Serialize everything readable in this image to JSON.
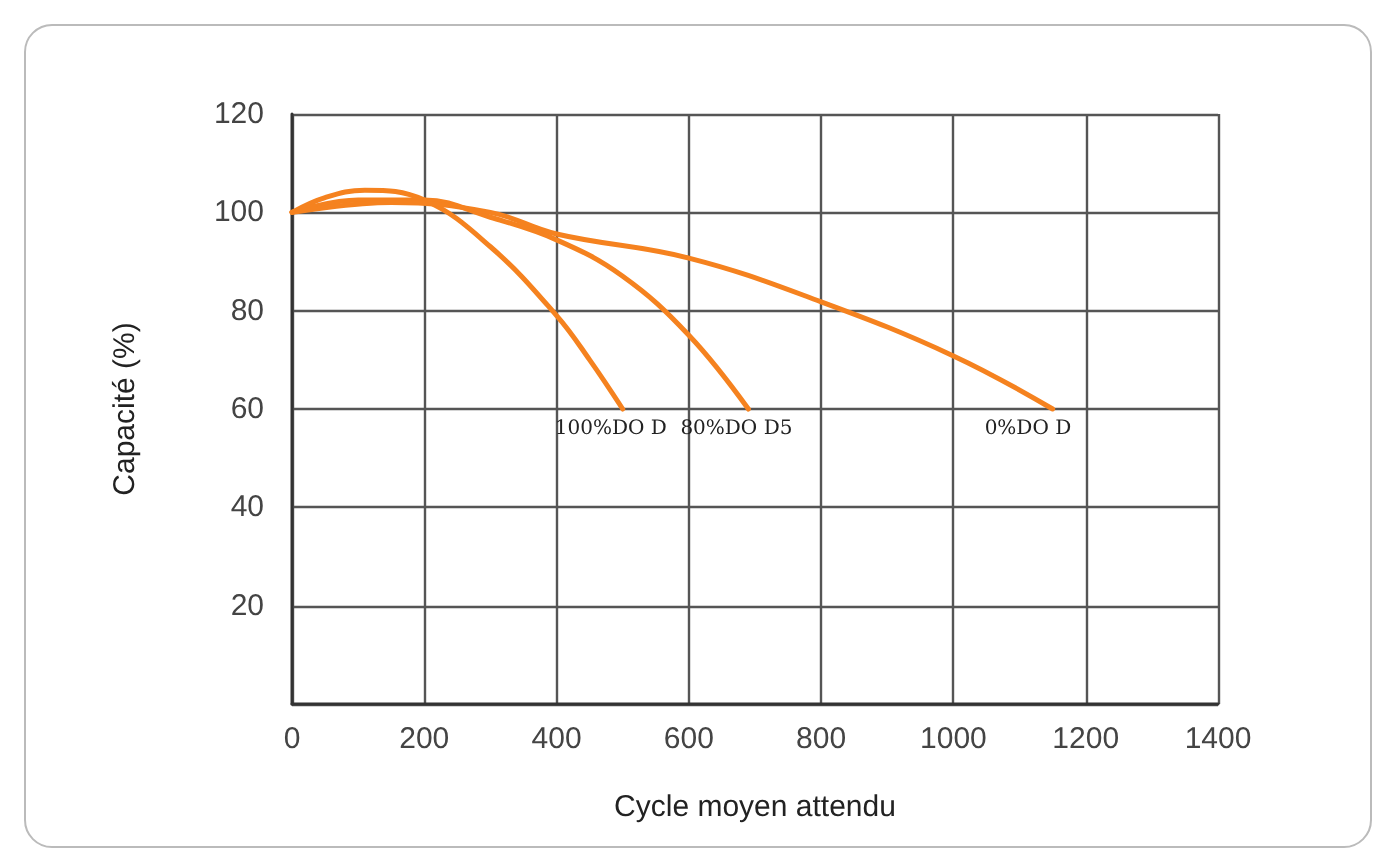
{
  "chart_data": {
    "type": "line",
    "xlabel": "Cycle moyen attendu",
    "ylabel": "Capacité (%)",
    "xlim": [
      0,
      1400
    ],
    "xticks": [
      0,
      200,
      400,
      600,
      800,
      1000,
      1200,
      1400
    ],
    "ylim": [
      0,
      120
    ],
    "yticks": [
      20,
      40,
      60,
      80,
      100,
      120,
      {
        "value": 0,
        "label": null
      }
    ],
    "grid": true,
    "marker": "none",
    "line_style": "solid",
    "series": [
      {
        "name": "100%DO D",
        "color": "#f5821f",
        "x": [
          0,
          50,
          110,
          200,
          300,
          400,
          450,
          500
        ],
        "values": [
          100,
          103,
          104.5,
          102.5,
          93,
          79,
          70,
          60
        ]
      },
      {
        "name": "80%DO D5",
        "color": "#f5821f",
        "x": [
          0,
          100,
          200,
          300,
          400,
          500,
          600,
          690
        ],
        "values": [
          100,
          102.5,
          102.5,
          99,
          94.4,
          87,
          75,
          60
        ]
      },
      {
        "name": "0%DO D",
        "color": "#f5821f",
        "x": [
          0,
          150,
          300,
          400,
          600,
          800,
          1000,
          1150
        ],
        "values": [
          100,
          102,
          100,
          95.6,
          90.7,
          81.8,
          70.8,
          60
        ]
      }
    ]
  }
}
